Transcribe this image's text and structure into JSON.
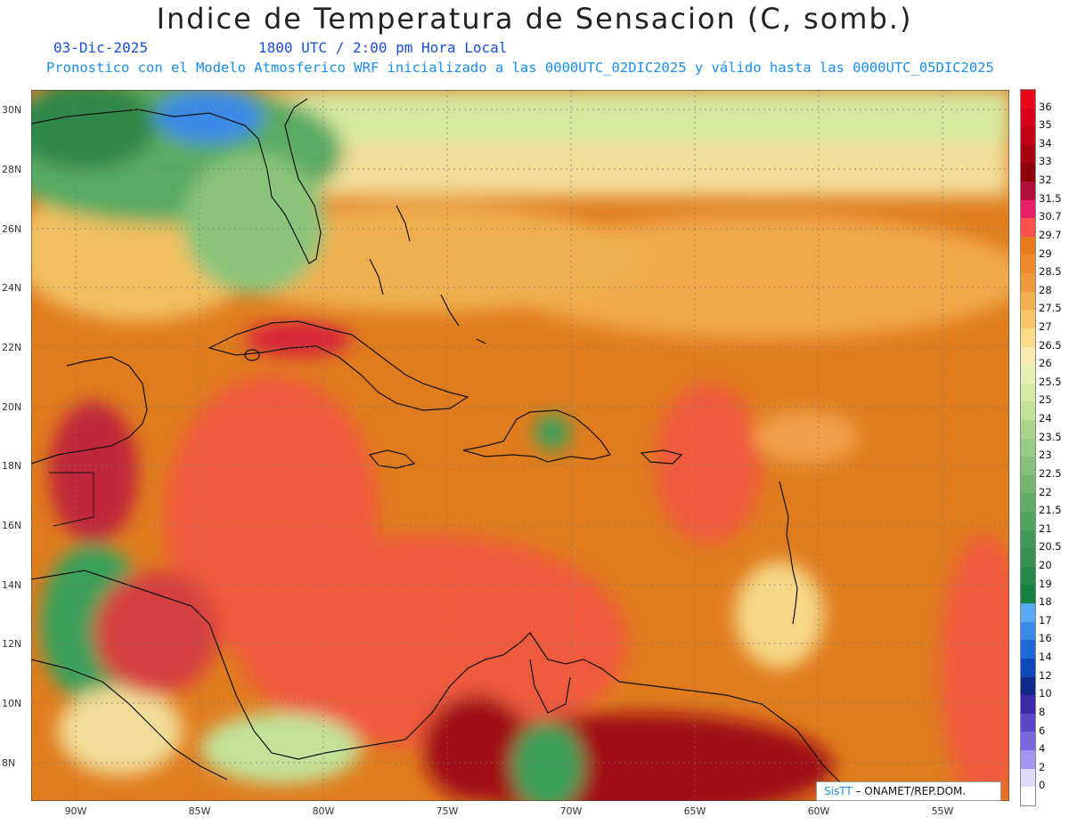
{
  "header": {
    "title": "Indice de Temperatura de Sensacion (C, somb.)",
    "date": "03-Dic-2025",
    "time": "1800 UTC / 2:00 pm Hora Local",
    "model_line": "Pronostico con el Modelo Atmosferico WRF inicializado a las 0000UTC_02DIC2025 y válido hasta las  0000UTC_05DIC2025"
  },
  "axes": {
    "lat_labels": [
      "30N",
      "28N",
      "26N",
      "24N",
      "22N",
      "20N",
      "18N",
      "16N",
      "14N",
      "12N",
      "10N",
      "8N"
    ],
    "lon_labels": [
      "90W",
      "85W",
      "80W",
      "75W",
      "70W",
      "65W",
      "60W",
      "55W"
    ]
  },
  "colorbar": {
    "labels": [
      "36",
      "35",
      "34",
      "33",
      "32",
      "31.5",
      "30.7",
      "29.7",
      "29",
      "28.5",
      "28",
      "27.5",
      "27",
      "26.5",
      "26",
      "25.5",
      "25",
      "24",
      "23.5",
      "23",
      "22.5",
      "22",
      "21.5",
      "21",
      "20.5",
      "20",
      "19",
      "18",
      "17",
      "16",
      "14",
      "12",
      "10",
      "8",
      "6",
      "4",
      "2",
      "0"
    ],
    "colors": [
      "#e8081a",
      "#d8001a",
      "#c00012",
      "#a80010",
      "#8e000c",
      "#b0103a",
      "#e8206a",
      "#ff5050",
      "#e67a1a",
      "#ee8a2c",
      "#f09a40",
      "#f4b04e",
      "#f8c468",
      "#fadb8a",
      "#f6eab0",
      "#e6f0b4",
      "#d4eaa4",
      "#c2e29a",
      "#aad48c",
      "#98cc84",
      "#86c07a",
      "#72b670",
      "#62ac66",
      "#52a260",
      "#44985a",
      "#369050",
      "#26884a",
      "#168040",
      "#58a8f0",
      "#3a8ae8",
      "#1e68d8",
      "#1048b8",
      "#102888",
      "#3a2aa8",
      "#5848c8",
      "#7868e0",
      "#a494f0",
      "#dcdcf8",
      "#ffffff"
    ]
  },
  "credit": {
    "logo": "SisTT",
    "org": "– ONAMET/REP.DOM."
  },
  "legend_colors": {
    "ocean_warm": "#f05a3e",
    "ocean_mid": "#e07c1e",
    "ocean_cool": "#f0a048",
    "land_green": "#3aa05a",
    "land_hot": "#a00814"
  }
}
